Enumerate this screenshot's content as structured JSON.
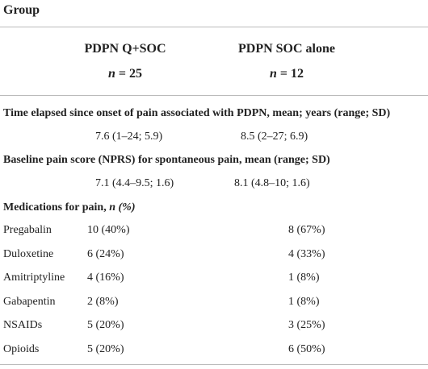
{
  "header": {
    "title": "Group",
    "columns": [
      {
        "name": "PDPN Q+SOC",
        "n_symbol": "n",
        "n_value": "= 25"
      },
      {
        "name": "PDPN SOC alone",
        "n_symbol": "n",
        "n_value": "= 12"
      }
    ]
  },
  "sections": [
    {
      "heading": "Time elapsed since onset of pain associated with PDPN, mean; years (range; SD)",
      "values": [
        "7.6 (1–24; 5.9)",
        "8.5 (2–27; 6.9)"
      ]
    },
    {
      "heading": "Baseline pain score (NPRS) for spontaneous pain, mean (range; SD)",
      "values": [
        "7.1 (4.4–9.5; 1.6)",
        "8.1 (4.8–10; 1.6)"
      ]
    }
  ],
  "medications": {
    "heading": "Medications for pain, ",
    "heading_italic": "n (%)",
    "rows": [
      [
        "Pregabalin",
        "10 (40%)",
        "8 (67%)"
      ],
      [
        "Duloxetine",
        "6 (24%)",
        "4 (33%)"
      ],
      [
        "Amitriptyline",
        "4 (16%)",
        "1 (8%)"
      ],
      [
        "Gabapentin",
        "2 (8%)",
        "1 (8%)"
      ],
      [
        "NSAIDs",
        "5 (20%)",
        "3 (25%)"
      ],
      [
        "Opioids",
        "5 (20%)",
        "6 (50%)"
      ]
    ]
  }
}
